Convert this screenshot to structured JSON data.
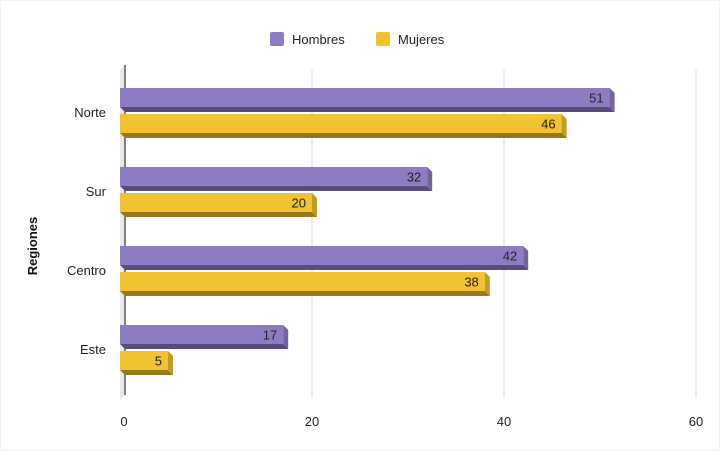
{
  "chart_data": {
    "type": "bar",
    "orientation": "horizontal",
    "style": "3d",
    "categories": [
      "Norte",
      "Sur",
      "Centro",
      "Este"
    ],
    "series": [
      {
        "name": "Hombres",
        "values": [
          51,
          32,
          42,
          17
        ],
        "color": "#8e7cc3"
      },
      {
        "name": "Mujeres",
        "values": [
          46,
          20,
          38,
          5
        ],
        "color": "#f1c232"
      }
    ],
    "ylabel": "Regiones",
    "xlabel": "",
    "xlim": [
      0,
      60
    ],
    "xticks": [
      0,
      20,
      40,
      60
    ],
    "grid": true,
    "legend_position": "top",
    "data_labels": true
  }
}
